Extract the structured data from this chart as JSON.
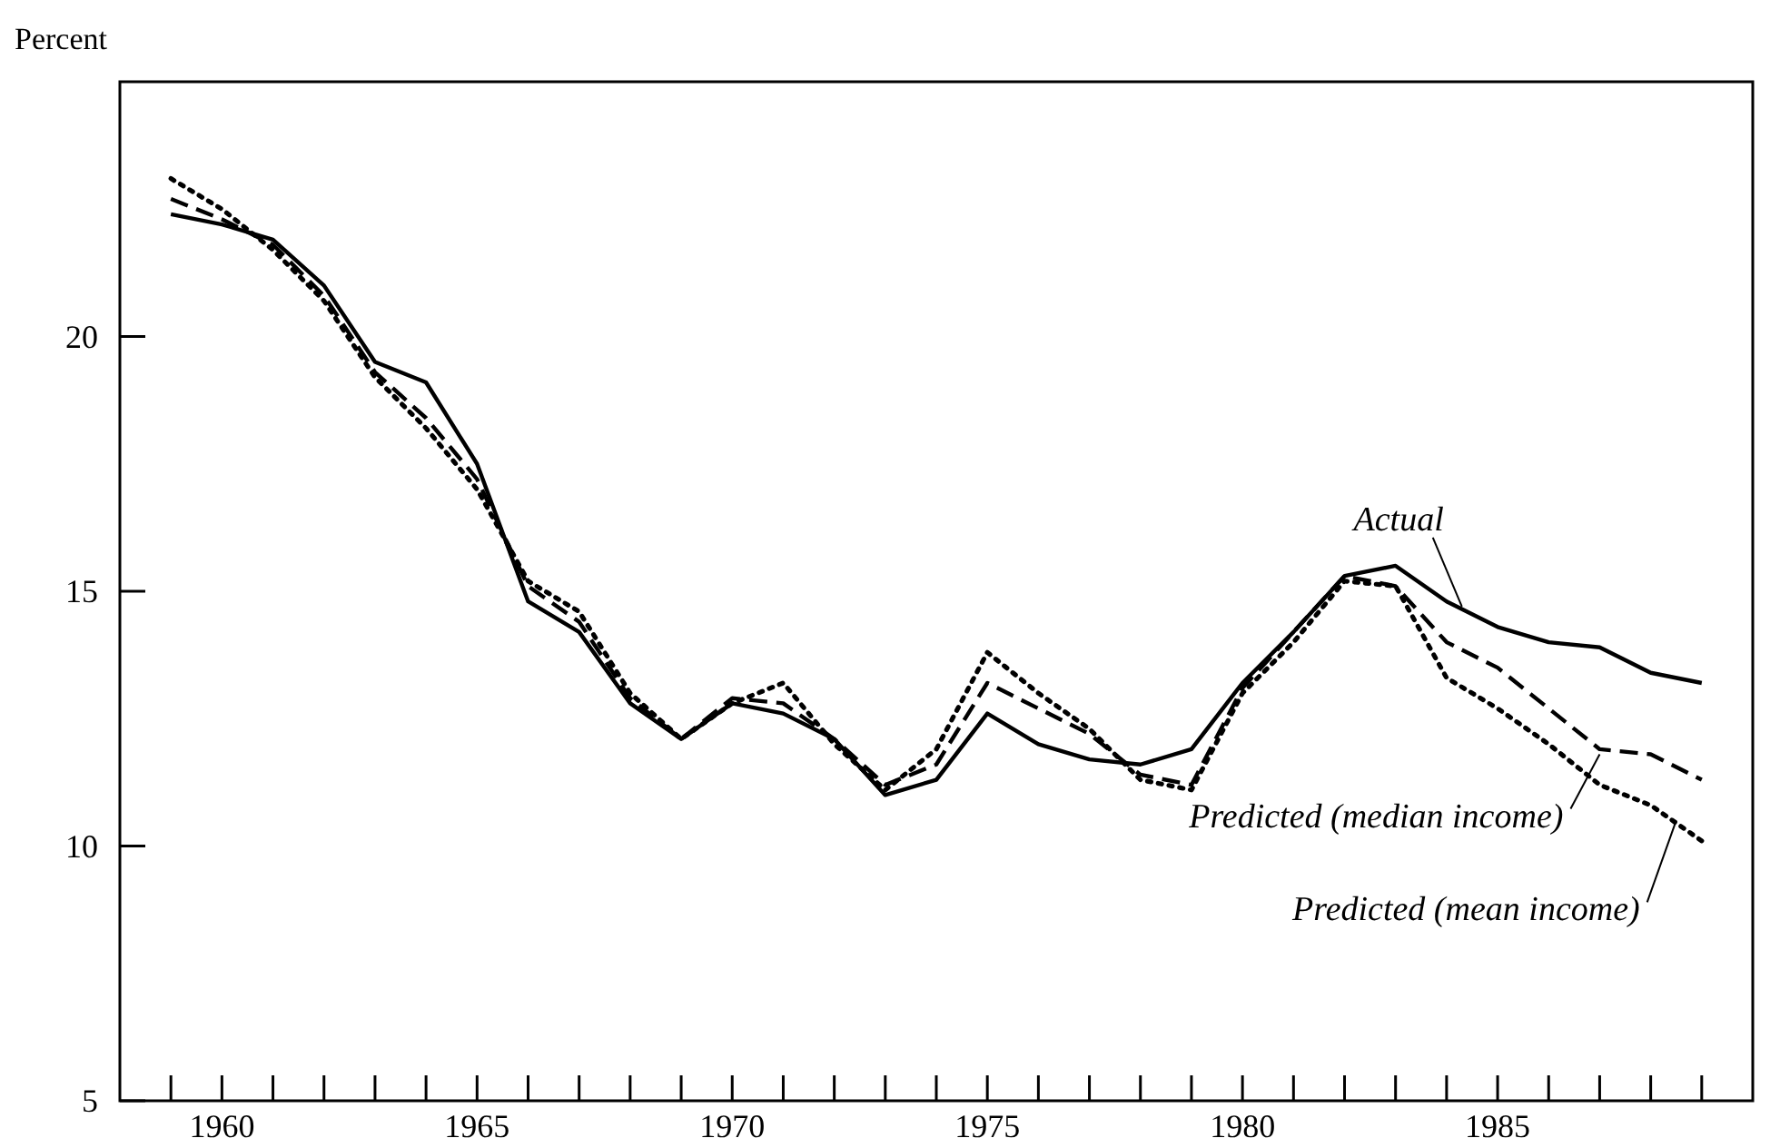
{
  "chart_data": {
    "type": "line",
    "ylabel": "Percent",
    "x": [
      1959,
      1960,
      1961,
      1962,
      1963,
      1964,
      1965,
      1966,
      1967,
      1968,
      1969,
      1970,
      1971,
      1972,
      1973,
      1974,
      1975,
      1976,
      1977,
      1978,
      1979,
      1980,
      1981,
      1982,
      1983,
      1984,
      1985,
      1986,
      1987,
      1988,
      1989
    ],
    "series": [
      {
        "color": "#000000",
        "line_style": "solid",
        "values": [
          22.4,
          22.2,
          21.9,
          21.0,
          19.5,
          19.1,
          17.5,
          14.8,
          14.2,
          12.8,
          12.1,
          12.8,
          12.6,
          12.1,
          11.0,
          11.3,
          12.6,
          12.0,
          11.7,
          11.6,
          11.9,
          13.2,
          14.2,
          15.3,
          15.5,
          14.8,
          14.3,
          14.0,
          13.9,
          13.4,
          13.2
        ]
      },
      {
        "color": "#000000",
        "line_style": "dashed",
        "values": [
          22.7,
          22.3,
          21.8,
          20.8,
          19.3,
          18.4,
          17.2,
          15.1,
          14.4,
          12.9,
          12.1,
          12.9,
          12.8,
          12.1,
          11.2,
          11.6,
          13.2,
          12.7,
          12.2,
          11.4,
          11.2,
          13.1,
          14.2,
          15.3,
          15.1,
          14.0,
          13.5,
          12.7,
          11.9,
          11.8,
          11.3
        ]
      },
      {
        "color": "#000000",
        "line_style": "dotted",
        "values": [
          23.1,
          22.5,
          21.7,
          20.7,
          19.2,
          18.2,
          17.0,
          15.2,
          14.6,
          13.0,
          12.1,
          12.8,
          13.2,
          12.0,
          11.1,
          11.9,
          13.8,
          13.0,
          12.3,
          11.3,
          11.1,
          13.0,
          14.0,
          15.2,
          15.1,
          13.3,
          12.7,
          12.0,
          11.2,
          10.8,
          10.1
        ]
      }
    ],
    "annotations": [
      {
        "text": "Actual",
        "x": 1984.3,
        "y": 14.7
      },
      {
        "text": "Predicted (median income)",
        "x": 1987,
        "y": 11.8
      },
      {
        "text": "Predicted (mean income)",
        "x": 1988.5,
        "y": 10.5
      }
    ],
    "xlim": [
      1958,
      1990
    ],
    "ylim": [
      5,
      25
    ],
    "xticks": [
      {
        "value": 1959,
        "label": null
      },
      1960,
      {
        "value": 1961,
        "label": null
      },
      {
        "value": 1962,
        "label": null
      },
      {
        "value": 1963,
        "label": null
      },
      {
        "value": 1964,
        "label": null
      },
      1965,
      {
        "value": 1966,
        "label": null
      },
      {
        "value": 1967,
        "label": null
      },
      {
        "value": 1968,
        "label": null
      },
      {
        "value": 1969,
        "label": null
      },
      1970,
      {
        "value": 1971,
        "label": null
      },
      {
        "value": 1972,
        "label": null
      },
      {
        "value": 1973,
        "label": null
      },
      {
        "value": 1974,
        "label": null
      },
      1975,
      {
        "value": 1976,
        "label": null
      },
      {
        "value": 1977,
        "label": null
      },
      {
        "value": 1978,
        "label": null
      },
      {
        "value": 1979,
        "label": null
      },
      1980,
      {
        "value": 1981,
        "label": null
      },
      {
        "value": 1982,
        "label": null
      },
      {
        "value": 1983,
        "label": null
      },
      {
        "value": 1984,
        "label": null
      },
      1985,
      {
        "value": 1986,
        "label": null
      },
      {
        "value": 1987,
        "label": null
      },
      {
        "value": 1988,
        "label": null
      },
      {
        "value": 1989,
        "label": null
      }
    ],
    "yticks": [
      5,
      10,
      15,
      20
    ],
    "grid": false,
    "marker": "none"
  }
}
